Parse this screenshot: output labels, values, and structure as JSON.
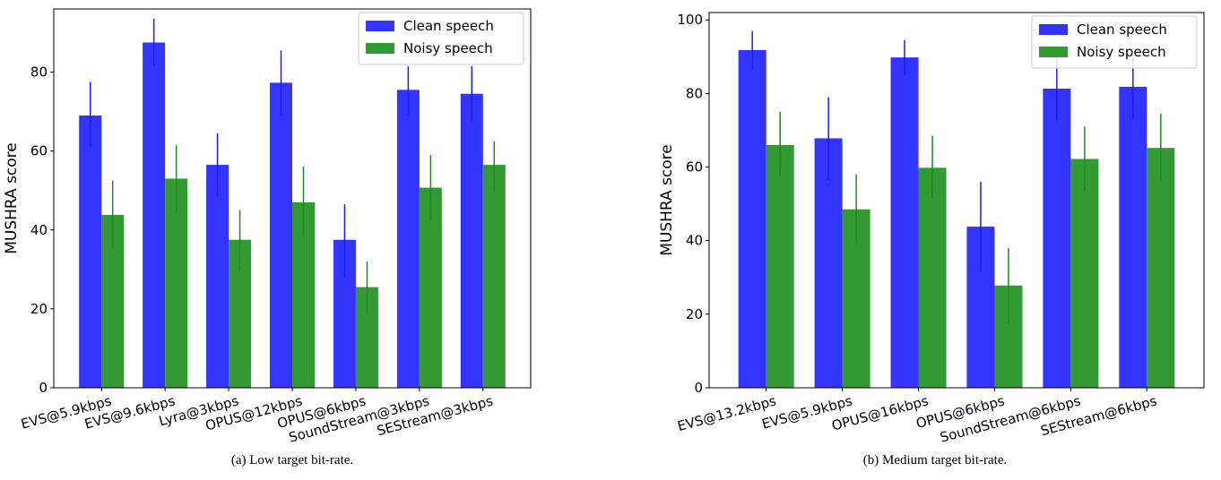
{
  "colors": {
    "clean": "#3434ff",
    "noisy": "#339933",
    "clean_err": "#1a1aff",
    "noisy_err": "#1f8a1f"
  },
  "chart_data": [
    {
      "type": "bar",
      "caption": "(a) Low target bit-rate.",
      "ylabel": "MUSHRA score",
      "xlabel": "",
      "ylim": [
        0,
        96
      ],
      "yticks": [
        0,
        20,
        40,
        60,
        80
      ],
      "grid": false,
      "legend_position": "top-right",
      "categories": [
        "EVS@5.9kbps",
        "EVS@9.6kbps",
        "Lyra@3kbps",
        "OPUS@12kbps",
        "OPUS@6kbps",
        "SoundStream@3kbps",
        "SEStream@3kbps"
      ],
      "series": [
        {
          "name": "Clean speech",
          "values": [
            69,
            87.5,
            56.5,
            77.3,
            37.5,
            75.5,
            74.5
          ],
          "err_low": [
            61,
            81.5,
            48.5,
            69,
            28,
            69,
            67.5
          ],
          "err_high": [
            77.5,
            93.5,
            64.5,
            85.5,
            46.5,
            81.5,
            81.5
          ]
        },
        {
          "name": "Noisy speech",
          "values": [
            43.8,
            53,
            37.5,
            47,
            25.5,
            50.7,
            56.5
          ],
          "err_low": [
            35,
            44.5,
            29.5,
            38.5,
            19,
            42.5,
            50
          ],
          "err_high": [
            52.5,
            61.5,
            45,
            56,
            32,
            59,
            62.5
          ]
        }
      ]
    },
    {
      "type": "bar",
      "caption": "(b) Medium target bit-rate.",
      "ylabel": "MUSHRA score",
      "xlabel": "",
      "ylim": [
        0,
        102
      ],
      "yticks": [
        0,
        20,
        40,
        60,
        80,
        100
      ],
      "grid": false,
      "legend_position": "top-right",
      "categories": [
        "EVS@13.2kbps",
        "EVS@5.9kbps",
        "OPUS@16kbps",
        "OPUS@6kbps",
        "SoundStream@6kbps",
        "SEStream@6kbps"
      ],
      "series": [
        {
          "name": "Clean speech",
          "values": [
            91.8,
            67.8,
            89.8,
            43.8,
            81.3,
            81.8
          ],
          "err_low": [
            86.5,
            56.5,
            85,
            31.5,
            72.5,
            73
          ],
          "err_high": [
            97,
            79,
            94.5,
            56,
            90,
            90.5
          ]
        },
        {
          "name": "Noisy speech",
          "values": [
            66,
            48.5,
            59.8,
            27.8,
            62.2,
            65.2
          ],
          "err_low": [
            57.5,
            39,
            51.5,
            17.5,
            53.5,
            56
          ],
          "err_high": [
            75,
            58,
            68.5,
            38,
            71,
            74.5
          ]
        }
      ]
    }
  ]
}
